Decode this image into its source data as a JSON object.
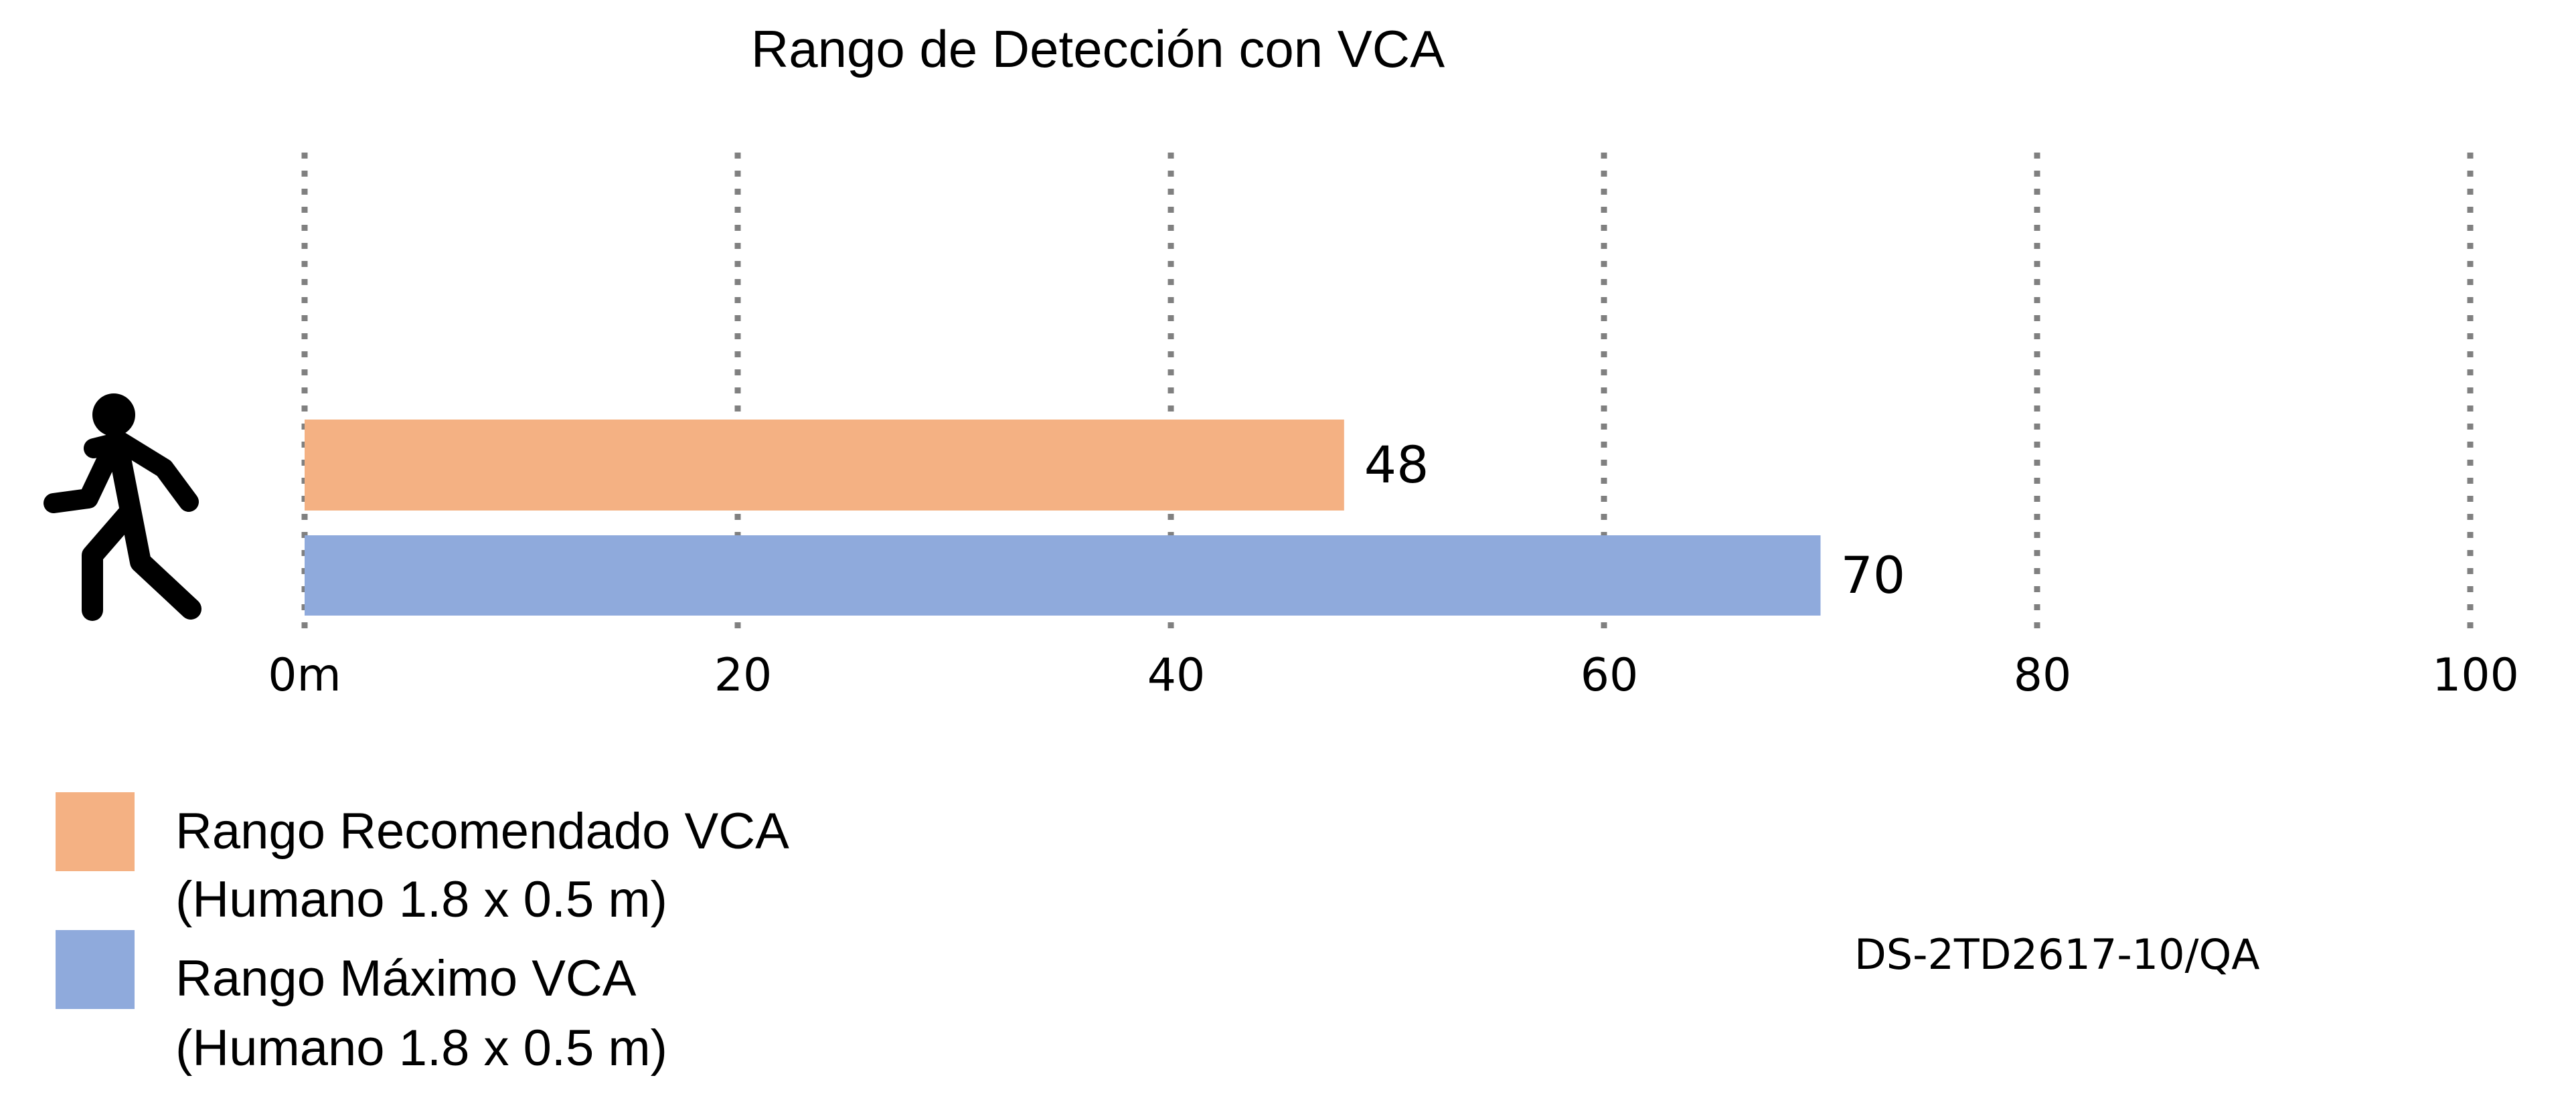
{
  "chart_data": {
    "type": "bar",
    "orientation": "horizontal",
    "title": "Rango de Detección con VCA",
    "model": "DS-2TD2617-10/QA",
    "xlim": [
      0,
      100
    ],
    "x_ticks": [
      "0m",
      "20",
      "40",
      "60",
      "80",
      "100"
    ],
    "x_tick_values": [
      0,
      20,
      40,
      60,
      80,
      100
    ],
    "grid": "vertical dotted",
    "legend_position": "bottom-left",
    "icon": "walking-person-icon",
    "series": [
      {
        "name": "Rango Recomendado VCA",
        "name_line2": "(Humano 1.8 x 0.5 m)",
        "value": 48,
        "label": "48",
        "color": "#f4b183"
      },
      {
        "name": "Rango Máximo VCA",
        "name_line2": "(Humano 1.8 x 0.5 m)",
        "value": 70,
        "label": "70",
        "color": "#8faadc"
      }
    ]
  }
}
